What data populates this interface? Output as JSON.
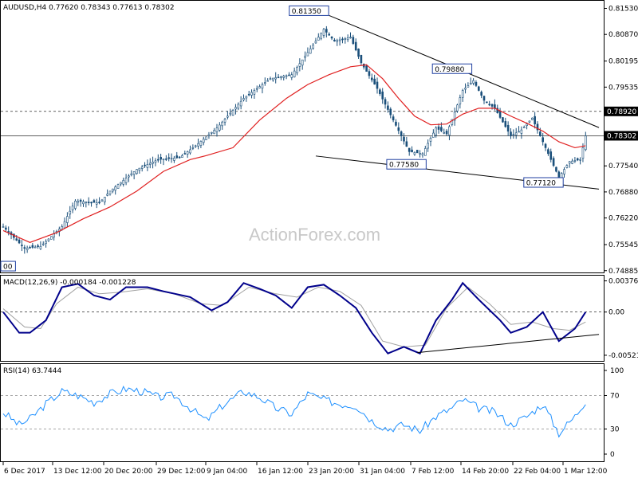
{
  "chart_data": [
    {
      "type": "candlestick",
      "title": "AUDUSD,H4",
      "ohlc": {
        "open": "0.77620",
        "high": "0.78343",
        "low": "0.77613",
        "close": "0.78302"
      },
      "ylim": [
        0.7488,
        0.8154
      ],
      "y_ticks": [
        "0.81530",
        "0.80870",
        "0.80195",
        "0.79535",
        "0.78870",
        "0.78200",
        "0.77540",
        "0.76880",
        "0.76220",
        "0.75545",
        "0.74885"
      ],
      "x_ticks": [
        "6 Dec 2017",
        "13 Dec 12:00",
        "20 Dec 20:00",
        "29 Dec 12:00",
        "9 Jan 04:00",
        "16 Jan 12:00",
        "23 Jan 20:00",
        "31 Jan 04:00",
        "7 Feb 12:00",
        "14 Feb 20:00",
        "22 Feb 04:00",
        "1 Mar 12:00"
      ],
      "price_path": [
        {
          "x": 0,
          "y": 0.76
        },
        {
          "x": 8,
          "y": 0.7545
        },
        {
          "x": 14,
          "y": 0.755
        },
        {
          "x": 22,
          "y": 0.76
        },
        {
          "x": 27,
          "y": 0.7665
        },
        {
          "x": 36,
          "y": 0.766
        },
        {
          "x": 40,
          "y": 0.769
        },
        {
          "x": 50,
          "y": 0.7745
        },
        {
          "x": 58,
          "y": 0.777
        },
        {
          "x": 66,
          "y": 0.7775
        },
        {
          "x": 72,
          "y": 0.7805
        },
        {
          "x": 80,
          "y": 0.785
        },
        {
          "x": 90,
          "y": 0.7925
        },
        {
          "x": 100,
          "y": 0.7975
        },
        {
          "x": 108,
          "y": 0.7985
        },
        {
          "x": 116,
          "y": 0.806
        },
        {
          "x": 120,
          "y": 0.81
        },
        {
          "x": 124,
          "y": 0.807
        },
        {
          "x": 130,
          "y": 0.808
        },
        {
          "x": 134,
          "y": 0.8015
        },
        {
          "x": 140,
          "y": 0.795
        },
        {
          "x": 146,
          "y": 0.787
        },
        {
          "x": 152,
          "y": 0.779
        },
        {
          "x": 157,
          "y": 0.7785
        },
        {
          "x": 162,
          "y": 0.785
        },
        {
          "x": 166,
          "y": 0.7835
        },
        {
          "x": 172,
          "y": 0.7945
        },
        {
          "x": 176,
          "y": 0.797
        },
        {
          "x": 180,
          "y": 0.792
        },
        {
          "x": 184,
          "y": 0.79
        },
        {
          "x": 190,
          "y": 0.783
        },
        {
          "x": 194,
          "y": 0.7845
        },
        {
          "x": 198,
          "y": 0.7875
        },
        {
          "x": 203,
          "y": 0.78
        },
        {
          "x": 208,
          "y": 0.7725
        },
        {
          "x": 212,
          "y": 0.7765
        },
        {
          "x": 216,
          "y": 0.777
        },
        {
          "x": 218,
          "y": 0.783
        }
      ],
      "ma_path": [
        {
          "x": 0,
          "y": 0.759
        },
        {
          "x": 10,
          "y": 0.756
        },
        {
          "x": 20,
          "y": 0.7585
        },
        {
          "x": 30,
          "y": 0.762
        },
        {
          "x": 40,
          "y": 0.765
        },
        {
          "x": 50,
          "y": 0.769
        },
        {
          "x": 60,
          "y": 0.774
        },
        {
          "x": 70,
          "y": 0.777
        },
        {
          "x": 76,
          "y": 0.778
        },
        {
          "x": 86,
          "y": 0.78
        },
        {
          "x": 96,
          "y": 0.787
        },
        {
          "x": 106,
          "y": 0.7925
        },
        {
          "x": 114,
          "y": 0.796
        },
        {
          "x": 122,
          "y": 0.7985
        },
        {
          "x": 130,
          "y": 0.8005
        },
        {
          "x": 136,
          "y": 0.801
        },
        {
          "x": 142,
          "y": 0.7975
        },
        {
          "x": 148,
          "y": 0.7925
        },
        {
          "x": 154,
          "y": 0.788
        },
        {
          "x": 160,
          "y": 0.7858
        },
        {
          "x": 166,
          "y": 0.786
        },
        {
          "x": 172,
          "y": 0.7885
        },
        {
          "x": 178,
          "y": 0.79
        },
        {
          "x": 184,
          "y": 0.79
        },
        {
          "x": 190,
          "y": 0.788
        },
        {
          "x": 196,
          "y": 0.7862
        },
        {
          "x": 202,
          "y": 0.7842
        },
        {
          "x": 208,
          "y": 0.7815
        },
        {
          "x": 214,
          "y": 0.78
        },
        {
          "x": 218,
          "y": 0.7805
        }
      ],
      "trendlines": [
        {
          "from": {
            "x": 122,
            "y": 0.8135
          },
          "to": {
            "x": 223,
            "y": 0.7851
          }
        },
        {
          "from": {
            "x": 117,
            "y": 0.7779
          },
          "to": {
            "x": 223,
            "y": 0.7695
          }
        }
      ],
      "levels": [
        {
          "y": 0.7892,
          "label": "0.78920",
          "style": "dashed",
          "label_color": "#ffffff",
          "label_bg": "#000000"
        },
        {
          "y": 0.78302,
          "label": "0.78302",
          "style": "solid",
          "label_color": "#ffffff",
          "label_bg": "#000000"
        }
      ],
      "annotations": [
        {
          "text": "0.81350",
          "x": 122,
          "y": 0.8135
        },
        {
          "text": "0.79880",
          "x": 172,
          "y": 0.7988
        },
        {
          "text": "0.77580",
          "x": 157,
          "y": 0.7758
        },
        {
          "text": "0.77120",
          "x": 208,
          "y": 0.7712
        },
        {
          "text": "00",
          "x": 0,
          "y": 0.75
        }
      ],
      "watermark": "ActionForex.com",
      "colors": {
        "candles": "#1a4f7a",
        "ma": "#e02020",
        "trend": "#000000",
        "annotation_border": "#2040a0"
      }
    },
    {
      "type": "line",
      "title": "MACD(12,26,9) -0.000184 -0.001228",
      "ylim": [
        -0.0058,
        0.0042
      ],
      "y_ticks": [
        "0.003762",
        "0.00",
        "-0.005216"
      ],
      "macd_path": [
        {
          "x": 0,
          "y": 0.0
        },
        {
          "x": 6,
          "y": -0.0025
        },
        {
          "x": 10,
          "y": -0.0025
        },
        {
          "x": 16,
          "y": -0.001
        },
        {
          "x": 22,
          "y": 0.003
        },
        {
          "x": 28,
          "y": 0.0034
        },
        {
          "x": 34,
          "y": 0.002
        },
        {
          "x": 40,
          "y": 0.0015
        },
        {
          "x": 46,
          "y": 0.003
        },
        {
          "x": 54,
          "y": 0.003
        },
        {
          "x": 60,
          "y": 0.0025
        },
        {
          "x": 70,
          "y": 0.0018
        },
        {
          "x": 78,
          "y": 0.0002
        },
        {
          "x": 84,
          "y": 0.0012
        },
        {
          "x": 90,
          "y": 0.0035
        },
        {
          "x": 96,
          "y": 0.0028
        },
        {
          "x": 102,
          "y": 0.002
        },
        {
          "x": 108,
          "y": 0.0005
        },
        {
          "x": 114,
          "y": 0.003
        },
        {
          "x": 120,
          "y": 0.0033
        },
        {
          "x": 126,
          "y": 0.002
        },
        {
          "x": 132,
          "y": 0.0005
        },
        {
          "x": 138,
          "y": -0.0025
        },
        {
          "x": 144,
          "y": -0.005
        },
        {
          "x": 150,
          "y": -0.0042
        },
        {
          "x": 156,
          "y": -0.005
        },
        {
          "x": 162,
          "y": -0.001
        },
        {
          "x": 168,
          "y": 0.0015
        },
        {
          "x": 172,
          "y": 0.0035
        },
        {
          "x": 178,
          "y": 0.0015
        },
        {
          "x": 186,
          "y": -0.001
        },
        {
          "x": 190,
          "y": -0.0025
        },
        {
          "x": 196,
          "y": -0.0018
        },
        {
          "x": 202,
          "y": 0.0
        },
        {
          "x": 208,
          "y": -0.0035
        },
        {
          "x": 214,
          "y": -0.002
        },
        {
          "x": 218,
          "y": 0.0
        }
      ],
      "signal_path": [
        {
          "x": 0,
          "y": 0.0004
        },
        {
          "x": 8,
          "y": -0.0018
        },
        {
          "x": 14,
          "y": -0.002
        },
        {
          "x": 20,
          "y": 0.001
        },
        {
          "x": 28,
          "y": 0.003
        },
        {
          "x": 36,
          "y": 0.0022
        },
        {
          "x": 44,
          "y": 0.0024
        },
        {
          "x": 54,
          "y": 0.0028
        },
        {
          "x": 64,
          "y": 0.0022
        },
        {
          "x": 74,
          "y": 0.001
        },
        {
          "x": 82,
          "y": 0.0008
        },
        {
          "x": 92,
          "y": 0.003
        },
        {
          "x": 102,
          "y": 0.0022
        },
        {
          "x": 110,
          "y": 0.0018
        },
        {
          "x": 118,
          "y": 0.003
        },
        {
          "x": 126,
          "y": 0.0025
        },
        {
          "x": 134,
          "y": 0.0008
        },
        {
          "x": 142,
          "y": -0.0035
        },
        {
          "x": 150,
          "y": -0.0042
        },
        {
          "x": 158,
          "y": -0.004
        },
        {
          "x": 166,
          "y": 0.0005
        },
        {
          "x": 174,
          "y": 0.003
        },
        {
          "x": 182,
          "y": 0.001
        },
        {
          "x": 190,
          "y": -0.0015
        },
        {
          "x": 198,
          "y": -0.0012
        },
        {
          "x": 206,
          "y": -0.002
        },
        {
          "x": 212,
          "y": -0.0022
        },
        {
          "x": 218,
          "y": -0.0012
        }
      ],
      "trendline": {
        "from": {
          "x": 155,
          "y": -0.0049
        },
        "to": {
          "x": 223,
          "y": -0.0027
        }
      },
      "colors": {
        "macd": "#00008b",
        "signal": "#a0a0a0"
      }
    },
    {
      "type": "line",
      "title": "RSI(14) 63.7444",
      "ylim": [
        0,
        100
      ],
      "y_ticks": [
        "100",
        "70",
        "30",
        "0"
      ],
      "levels": [
        70,
        30
      ],
      "rsi_path": [
        {
          "x": 0,
          "y": 50
        },
        {
          "x": 6,
          "y": 35
        },
        {
          "x": 10,
          "y": 42
        },
        {
          "x": 16,
          "y": 60
        },
        {
          "x": 22,
          "y": 75
        },
        {
          "x": 28,
          "y": 70
        },
        {
          "x": 34,
          "y": 62
        },
        {
          "x": 40,
          "y": 72
        },
        {
          "x": 46,
          "y": 78
        },
        {
          "x": 52,
          "y": 75
        },
        {
          "x": 58,
          "y": 68
        },
        {
          "x": 64,
          "y": 70
        },
        {
          "x": 70,
          "y": 55
        },
        {
          "x": 76,
          "y": 40
        },
        {
          "x": 82,
          "y": 58
        },
        {
          "x": 90,
          "y": 75
        },
        {
          "x": 96,
          "y": 68
        },
        {
          "x": 102,
          "y": 55
        },
        {
          "x": 108,
          "y": 48
        },
        {
          "x": 114,
          "y": 72
        },
        {
          "x": 120,
          "y": 65
        },
        {
          "x": 126,
          "y": 60
        },
        {
          "x": 132,
          "y": 58
        },
        {
          "x": 138,
          "y": 40
        },
        {
          "x": 144,
          "y": 30
        },
        {
          "x": 150,
          "y": 35
        },
        {
          "x": 156,
          "y": 28
        },
        {
          "x": 162,
          "y": 45
        },
        {
          "x": 168,
          "y": 55
        },
        {
          "x": 172,
          "y": 65
        },
        {
          "x": 178,
          "y": 55
        },
        {
          "x": 184,
          "y": 50
        },
        {
          "x": 190,
          "y": 35
        },
        {
          "x": 196,
          "y": 45
        },
        {
          "x": 202,
          "y": 60
        },
        {
          "x": 208,
          "y": 25
        },
        {
          "x": 214,
          "y": 45
        },
        {
          "x": 218,
          "y": 63.7
        }
      ],
      "colors": {
        "rsi": "#1e90ff",
        "level": "#888888"
      }
    }
  ],
  "watermark": "ActionForex.com"
}
